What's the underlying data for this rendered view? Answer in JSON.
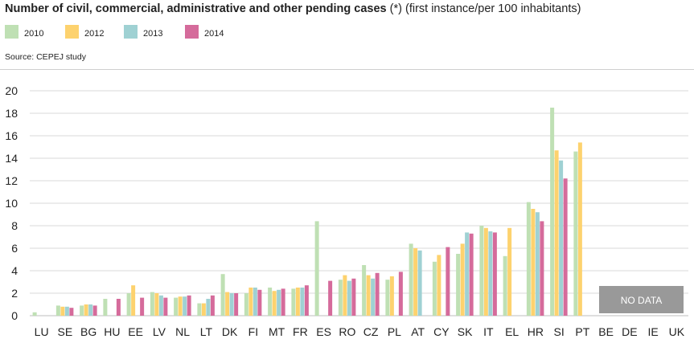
{
  "title": {
    "bold": "Number of civil, commercial, administrative and other pending cases",
    "marker": "(*)",
    "rest": "(first instance/per 100 inhabitants)"
  },
  "source": "Source: CEPEJ study",
  "no_data_label": "NO DATA",
  "colors": {
    "2010": "#bfe0b4",
    "2012": "#fdd26e",
    "2013": "#9fd1d3",
    "2014": "#d56b9b",
    "no_data_box": "#999999",
    "grid": "#d9d9d9"
  },
  "chart_data": {
    "type": "bar",
    "categories": [
      "LU",
      "SE",
      "BG",
      "HU",
      "EE",
      "LV",
      "NL",
      "LT",
      "DK",
      "FI",
      "MT",
      "FR",
      "ES",
      "RO",
      "CZ",
      "PL",
      "AT",
      "CY",
      "SK",
      "IT",
      "EL",
      "HR",
      "SI",
      "PT",
      "BE",
      "DE",
      "IE",
      "UK"
    ],
    "series": [
      {
        "name": "2010",
        "values": [
          0.3,
          0.9,
          0.9,
          1.5,
          2.0,
          2.1,
          1.6,
          1.1,
          3.7,
          2.0,
          2.5,
          2.4,
          8.4,
          3.2,
          4.5,
          3.2,
          6.4,
          4.8,
          5.5,
          8.0,
          5.3,
          10.1,
          18.5,
          14.6,
          null,
          null,
          null,
          null
        ]
      },
      {
        "name": "2012",
        "values": [
          null,
          0.8,
          1.0,
          null,
          2.7,
          2.0,
          1.7,
          1.1,
          2.1,
          2.5,
          2.2,
          2.5,
          null,
          3.6,
          3.6,
          3.5,
          6.0,
          5.4,
          6.4,
          7.8,
          7.8,
          9.5,
          14.7,
          15.4,
          null,
          null,
          null,
          null
        ]
      },
      {
        "name": "2013",
        "values": [
          null,
          0.8,
          1.0,
          null,
          null,
          1.8,
          1.7,
          1.5,
          2.0,
          2.5,
          2.3,
          2.5,
          null,
          3.1,
          3.3,
          null,
          5.8,
          null,
          7.4,
          7.5,
          null,
          9.2,
          13.8,
          null,
          null,
          null,
          null,
          null
        ]
      },
      {
        "name": "2014",
        "values": [
          null,
          0.7,
          0.9,
          1.5,
          1.6,
          1.6,
          1.8,
          1.8,
          2.0,
          2.3,
          2.4,
          2.7,
          3.1,
          3.3,
          3.8,
          3.9,
          null,
          6.1,
          7.3,
          7.4,
          null,
          8.4,
          12.2,
          null,
          null,
          null,
          null,
          null
        ]
      }
    ],
    "no_data_categories": [
      "BE",
      "DE",
      "IE",
      "UK"
    ],
    "ylim": [
      0,
      20
    ],
    "yticks": [
      0,
      2,
      4,
      6,
      8,
      10,
      12,
      14,
      16,
      18,
      20
    ],
    "grid": true,
    "legend_position": "top-left"
  }
}
